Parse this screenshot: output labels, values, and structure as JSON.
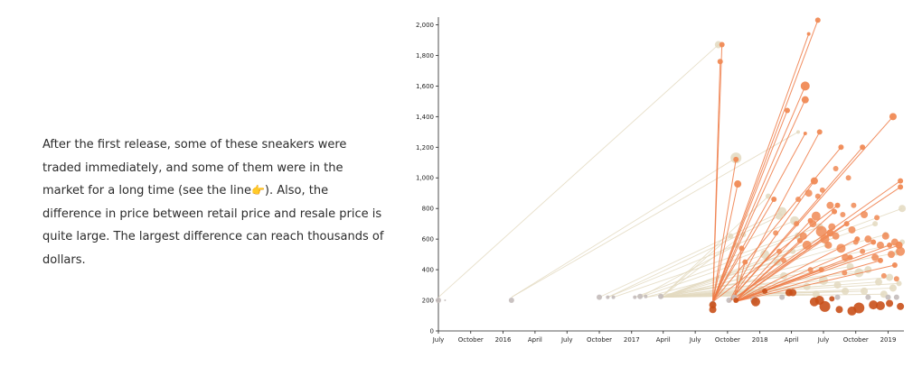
{
  "narrative": {
    "before_icon": "After the first release, some of these sneakers were traded immediately, and some of them were in the market for a long time (see the line",
    "icon": "👉",
    "after_icon": "). Also, the difference in price between retail price and resale price is quite large. The largest difference can reach thousands of dollars."
  },
  "chart_data": {
    "type": "scatter",
    "title": "",
    "xlabel": "",
    "ylabel": "",
    "x_ticks": [
      "July",
      "October",
      "2016",
      "April",
      "July",
      "October",
      "2017",
      "April",
      "July",
      "October",
      "2018",
      "April",
      "July",
      "October",
      "2019"
    ],
    "x_range": [
      "2015-07-01",
      "2019-02-15"
    ],
    "y_ticks": [
      "0",
      "200",
      "400",
      "600",
      "800",
      "1,000",
      "1,200",
      "1,400",
      "1,600",
      "1,800",
      "2,000"
    ],
    "ylim": [
      0,
      2050
    ],
    "colors": {
      "release": "#c3bbba",
      "faded_link": "#e3d9c0",
      "resale_low": "#c9501a",
      "resale_high": "#f08a55",
      "highlight_link": "#ee7a45"
    },
    "release_points": [
      {
        "date": "2015-07-01",
        "price": 200,
        "size": 3
      },
      {
        "date": "2015-07-20",
        "price": 200,
        "size": 1
      },
      {
        "date": "2016-01-25",
        "price": 200,
        "size": 3
      },
      {
        "date": "2016-10-01",
        "price": 220,
        "size": 3
      },
      {
        "date": "2016-10-25",
        "price": 220,
        "size": 2
      },
      {
        "date": "2016-11-10",
        "price": 220,
        "size": 2
      },
      {
        "date": "2017-01-10",
        "price": 220,
        "size": 2
      },
      {
        "date": "2017-01-25",
        "price": 225,
        "size": 3
      },
      {
        "date": "2017-02-10",
        "price": 225,
        "size": 2
      },
      {
        "date": "2017-03-25",
        "price": 225,
        "size": 3
      },
      {
        "date": "2017-08-20",
        "price": 180,
        "size": 3
      },
      {
        "date": "2017-10-05",
        "price": 200,
        "size": 3
      },
      {
        "date": "2017-10-20",
        "price": 220,
        "size": 3
      },
      {
        "date": "2017-12-15",
        "price": 200,
        "size": 4
      },
      {
        "date": "2018-03-05",
        "price": 220,
        "size": 3
      },
      {
        "date": "2018-08-10",
        "price": 220,
        "size": 3
      },
      {
        "date": "2018-11-05",
        "price": 220,
        "size": 3
      },
      {
        "date": "2019-01-01",
        "price": 220,
        "size": 3
      },
      {
        "date": "2019-01-25",
        "price": 220,
        "size": 3
      }
    ],
    "highlighted_trades": [
      {
        "from": "2017-08-20",
        "to": "2017-09-10",
        "price": 1760,
        "size": 3
      },
      {
        "from": "2017-08-20",
        "to": "2017-09-15",
        "price": 1870,
        "size": 3
      },
      {
        "from": "2017-08-20",
        "to": "2018-06-15",
        "price": 2030,
        "size": 3
      },
      {
        "from": "2017-08-20",
        "to": "2018-05-20",
        "price": 1940,
        "size": 2
      },
      {
        "from": "2017-08-20",
        "to": "2018-05-10",
        "price": 1600,
        "size": 5
      },
      {
        "from": "2017-08-20",
        "to": "2018-05-10",
        "price": 1510,
        "size": 4
      },
      {
        "from": "2017-08-20",
        "to": "2018-03-20",
        "price": 1440,
        "size": 3
      },
      {
        "from": "2017-10-05",
        "to": "2019-01-15",
        "price": 1400,
        "size": 4
      },
      {
        "from": "2017-10-05",
        "to": "2018-06-20",
        "price": 1300,
        "size": 3
      },
      {
        "from": "2017-08-20",
        "to": "2018-05-10",
        "price": 1290,
        "size": 2
      },
      {
        "from": "2017-08-20",
        "to": "2018-08-20",
        "price": 1200,
        "size": 3
      },
      {
        "from": "2017-08-20",
        "to": "2017-10-25",
        "price": 1120,
        "size": 3
      },
      {
        "from": "2017-10-05",
        "to": "2018-06-05",
        "price": 980,
        "size": 4
      },
      {
        "from": "2017-10-05",
        "to": "2018-10-20",
        "price": 1200,
        "size": 3
      },
      {
        "from": "2017-10-05",
        "to": "2019-02-05",
        "price": 980,
        "size": 3
      },
      {
        "from": "2017-10-05",
        "to": "2019-02-05",
        "price": 940,
        "size": 3
      },
      {
        "from": "2017-08-20",
        "to": "2017-10-30",
        "price": 960,
        "size": 4
      },
      {
        "from": "2017-08-20",
        "to": "2018-02-10",
        "price": 860,
        "size": 3
      },
      {
        "from": "2017-08-20",
        "to": "2018-08-10",
        "price": 820,
        "size": 3
      },
      {
        "from": "2017-10-20",
        "to": "2018-09-05",
        "price": 700,
        "size": 3
      },
      {
        "from": "2017-10-20",
        "to": "2018-10-05",
        "price": 600,
        "size": 3
      },
      {
        "from": "2017-10-20",
        "to": "2018-11-20",
        "price": 580,
        "size": 3
      },
      {
        "from": "2017-10-20",
        "to": "2019-01-05",
        "price": 560,
        "size": 3
      },
      {
        "from": "2017-10-20",
        "to": "2019-02-01",
        "price": 560,
        "size": 4
      },
      {
        "from": "2017-10-20",
        "to": "2018-07-20",
        "price": 640,
        "size": 4
      },
      {
        "from": "2017-10-20",
        "to": "2018-04-25",
        "price": 590,
        "size": 3
      },
      {
        "from": "2017-10-20",
        "to": "2018-05-25",
        "price": 720,
        "size": 3
      },
      {
        "from": "2017-10-20",
        "to": "2018-08-01",
        "price": 780,
        "size": 3
      },
      {
        "from": "2017-10-20",
        "to": "2017-11-10",
        "price": 540,
        "size": 3
      },
      {
        "from": "2017-10-20",
        "to": "2017-11-20",
        "price": 450,
        "size": 3
      },
      {
        "from": "2017-10-20",
        "to": "2018-09-15",
        "price": 480,
        "size": 3
      },
      {
        "from": "2017-10-20",
        "to": "2018-12-10",
        "price": 460,
        "size": 3
      },
      {
        "from": "2017-10-20",
        "to": "2019-01-20",
        "price": 430,
        "size": 3
      },
      {
        "from": "2017-10-20",
        "to": "2018-06-25",
        "price": 400,
        "size": 3
      }
    ],
    "faded_trades": [
      {
        "from": "2015-07-01",
        "to": "2017-09-05",
        "price": 1870,
        "size": 4
      },
      {
        "from": "2016-01-25",
        "to": "2018-04-20",
        "price": 1300,
        "size": 2
      },
      {
        "from": "2016-01-25",
        "to": "2017-10-25",
        "price": 1130,
        "size": 6
      },
      {
        "from": "2016-10-01",
        "to": "2018-03-05",
        "price": 780,
        "size": 5
      },
      {
        "from": "2016-10-25",
        "to": "2018-02-25",
        "price": 750,
        "size": 4
      },
      {
        "from": "2016-10-25",
        "to": "2018-04-10",
        "price": 720,
        "size": 5
      },
      {
        "from": "2016-11-10",
        "to": "2018-06-20",
        "price": 680,
        "size": 4
      },
      {
        "from": "2017-01-10",
        "to": "2018-04-20",
        "price": 620,
        "size": 4
      },
      {
        "from": "2017-01-25",
        "to": "2017-10-25",
        "price": 560,
        "size": 3
      },
      {
        "from": "2017-01-25",
        "to": "2018-01-15",
        "price": 500,
        "size": 5
      },
      {
        "from": "2017-02-10",
        "to": "2018-02-20",
        "price": 450,
        "size": 4
      },
      {
        "from": "2017-02-10",
        "to": "2018-09-15",
        "price": 420,
        "size": 4
      },
      {
        "from": "2017-03-25",
        "to": "2018-11-05",
        "price": 400,
        "size": 4
      },
      {
        "from": "2017-03-25",
        "to": "2018-10-10",
        "price": 380,
        "size": 5
      },
      {
        "from": "2017-03-25",
        "to": "2018-03-10",
        "price": 360,
        "size": 4
      },
      {
        "from": "2017-03-25",
        "to": "2019-01-05",
        "price": 350,
        "size": 4
      },
      {
        "from": "2017-03-25",
        "to": "2017-11-05",
        "price": 340,
        "size": 4
      },
      {
        "from": "2017-03-25",
        "to": "2018-07-01",
        "price": 330,
        "size": 5
      },
      {
        "from": "2017-03-25",
        "to": "2018-12-05",
        "price": 320,
        "size": 4
      },
      {
        "from": "2017-03-25",
        "to": "2019-02-01",
        "price": 310,
        "size": 3
      },
      {
        "from": "2017-03-25",
        "to": "2018-08-10",
        "price": 300,
        "size": 4
      },
      {
        "from": "2017-03-25",
        "to": "2018-05-15",
        "price": 290,
        "size": 4
      },
      {
        "from": "2017-03-25",
        "to": "2019-01-15",
        "price": 280,
        "size": 4
      },
      {
        "from": "2017-03-25",
        "to": "2018-01-05",
        "price": 270,
        "size": 4
      },
      {
        "from": "2017-03-25",
        "to": "2018-10-25",
        "price": 260,
        "size": 4
      },
      {
        "from": "2017-03-25",
        "to": "2018-09-01",
        "price": 260,
        "size": 4
      },
      {
        "from": "2017-03-25",
        "to": "2018-03-25",
        "price": 250,
        "size": 4
      },
      {
        "from": "2017-03-25",
        "to": "2017-12-05",
        "price": 250,
        "size": 4
      },
      {
        "from": "2017-03-25",
        "to": "2018-06-10",
        "price": 240,
        "size": 4
      },
      {
        "from": "2017-03-25",
        "to": "2018-12-20",
        "price": 240,
        "size": 4
      },
      {
        "from": "2017-03-25",
        "to": "2019-02-10",
        "price": 580,
        "size": 3
      },
      {
        "from": "2017-03-25",
        "to": "2019-01-25",
        "price": 510,
        "size": 3
      },
      {
        "from": "2017-03-25",
        "to": "2018-12-25",
        "price": 630,
        "size": 3
      },
      {
        "from": "2017-03-25",
        "to": "2018-11-25",
        "price": 700,
        "size": 3
      },
      {
        "from": "2017-03-25",
        "to": "2019-02-10",
        "price": 800,
        "size": 4
      },
      {
        "from": "2017-03-25",
        "to": "2018-01-25",
        "price": 880,
        "size": 3
      },
      {
        "from": "2017-03-25",
        "to": "2017-11-15",
        "price": 630,
        "size": 3
      },
      {
        "from": "2017-03-25",
        "to": "2017-10-10",
        "price": 620,
        "size": 3
      },
      {
        "from": "2017-03-25",
        "to": "2018-04-05",
        "price": 520,
        "size": 3
      },
      {
        "from": "2017-03-25",
        "to": "2018-07-10",
        "price": 560,
        "size": 3
      }
    ],
    "sold_points": [
      {
        "date": "2017-08-20",
        "price": 170,
        "size": 4
      },
      {
        "date": "2017-08-20",
        "price": 140,
        "size": 4
      },
      {
        "date": "2017-10-25",
        "price": 200,
        "size": 3
      },
      {
        "date": "2017-12-20",
        "price": 190,
        "size": 5
      },
      {
        "date": "2018-03-25",
        "price": 250,
        "size": 4
      },
      {
        "date": "2018-04-05",
        "price": 250,
        "size": 4
      },
      {
        "date": "2018-06-05",
        "price": 190,
        "size": 5
      },
      {
        "date": "2018-06-20",
        "price": 200,
        "size": 5
      },
      {
        "date": "2018-07-05",
        "price": 160,
        "size": 6
      },
      {
        "date": "2018-08-15",
        "price": 140,
        "size": 4
      },
      {
        "date": "2018-09-20",
        "price": 130,
        "size": 5
      },
      {
        "date": "2018-10-10",
        "price": 150,
        "size": 6
      },
      {
        "date": "2018-11-20",
        "price": 170,
        "size": 5
      },
      {
        "date": "2018-12-10",
        "price": 165,
        "size": 5
      },
      {
        "date": "2019-01-05",
        "price": 180,
        "size": 4
      },
      {
        "date": "2019-02-05",
        "price": 160,
        "size": 4
      },
      {
        "date": "2018-01-15",
        "price": 260,
        "size": 3
      },
      {
        "date": "2018-07-25",
        "price": 210,
        "size": 3
      }
    ],
    "extra_orange_points": [
      {
        "date": "2018-05-05",
        "price": 620,
        "size": 4
      },
      {
        "date": "2018-05-15",
        "price": 560,
        "size": 5
      },
      {
        "date": "2018-06-01",
        "price": 700,
        "size": 4
      },
      {
        "date": "2018-06-10",
        "price": 750,
        "size": 5
      },
      {
        "date": "2018-06-25",
        "price": 650,
        "size": 6
      },
      {
        "date": "2018-07-05",
        "price": 600,
        "size": 5
      },
      {
        "date": "2018-07-15",
        "price": 560,
        "size": 4
      },
      {
        "date": "2018-07-25",
        "price": 680,
        "size": 4
      },
      {
        "date": "2018-08-05",
        "price": 620,
        "size": 4
      },
      {
        "date": "2018-08-20",
        "price": 540,
        "size": 5
      },
      {
        "date": "2018-09-01",
        "price": 480,
        "size": 4
      },
      {
        "date": "2018-09-20",
        "price": 660,
        "size": 4
      },
      {
        "date": "2018-10-01",
        "price": 580,
        "size": 3
      },
      {
        "date": "2018-10-20",
        "price": 520,
        "size": 3
      },
      {
        "date": "2018-11-05",
        "price": 600,
        "size": 4
      },
      {
        "date": "2018-11-25",
        "price": 480,
        "size": 4
      },
      {
        "date": "2018-12-10",
        "price": 560,
        "size": 4
      },
      {
        "date": "2018-12-25",
        "price": 620,
        "size": 4
      },
      {
        "date": "2019-01-10",
        "price": 500,
        "size": 4
      },
      {
        "date": "2019-01-20",
        "price": 580,
        "size": 4
      },
      {
        "date": "2019-02-05",
        "price": 520,
        "size": 5
      },
      {
        "date": "2018-04-20",
        "price": 860,
        "size": 3
      },
      {
        "date": "2018-05-20",
        "price": 900,
        "size": 4
      },
      {
        "date": "2018-06-15",
        "price": 880,
        "size": 3
      },
      {
        "date": "2018-07-20",
        "price": 820,
        "size": 4
      },
      {
        "date": "2018-08-25",
        "price": 760,
        "size": 3
      },
      {
        "date": "2018-09-25",
        "price": 820,
        "size": 3
      },
      {
        "date": "2018-10-25",
        "price": 760,
        "size": 4
      },
      {
        "date": "2018-11-30",
        "price": 740,
        "size": 3
      },
      {
        "date": "2018-02-15",
        "price": 640,
        "size": 3
      },
      {
        "date": "2018-02-25",
        "price": 520,
        "size": 3
      },
      {
        "date": "2018-03-10",
        "price": 460,
        "size": 3
      },
      {
        "date": "2018-04-15",
        "price": 700,
        "size": 3
      },
      {
        "date": "2018-05-25",
        "price": 400,
        "size": 3
      },
      {
        "date": "2018-08-30",
        "price": 380,
        "size": 3
      },
      {
        "date": "2018-12-20",
        "price": 360,
        "size": 3
      },
      {
        "date": "2019-01-25",
        "price": 340,
        "size": 3
      },
      {
        "date": "2018-09-10",
        "price": 1000,
        "size": 3
      },
      {
        "date": "2018-08-05",
        "price": 1060,
        "size": 3
      },
      {
        "date": "2018-06-28",
        "price": 920,
        "size": 3
      }
    ]
  }
}
